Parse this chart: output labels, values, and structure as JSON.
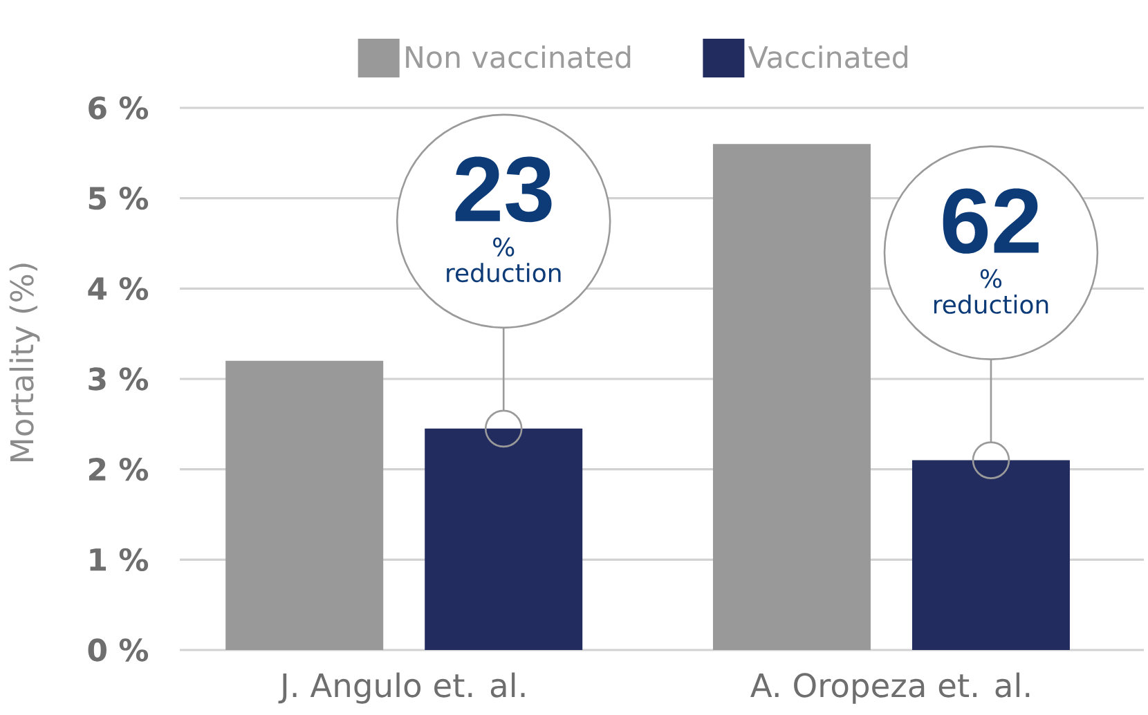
{
  "chart_data": {
    "type": "bar",
    "categories": [
      "J. Angulo et. al.",
      "A. Oropeza et. al."
    ],
    "series": [
      {
        "name": "Non vaccinated",
        "color": "#999999",
        "values": [
          3.2,
          5.6
        ]
      },
      {
        "name": "Vaccinated",
        "color": "#232c5f",
        "values": [
          2.45,
          2.1
        ]
      }
    ],
    "ylabel": "Mortality (%)",
    "ylim": [
      0,
      6
    ],
    "yticks": [
      {
        "value": 0,
        "label": "0 %"
      },
      {
        "value": 1,
        "label": "1 %"
      },
      {
        "value": 2,
        "label": "2 %"
      },
      {
        "value": 3,
        "label": "3 %"
      },
      {
        "value": 4,
        "label": "4 %"
      },
      {
        "value": 5,
        "label": "5 %"
      },
      {
        "value": 6,
        "label": "6 %"
      }
    ],
    "grid": "y",
    "legend": "top",
    "annotations": [
      "23",
      "% reduction",
      "62",
      "% reduction"
    ]
  }
}
